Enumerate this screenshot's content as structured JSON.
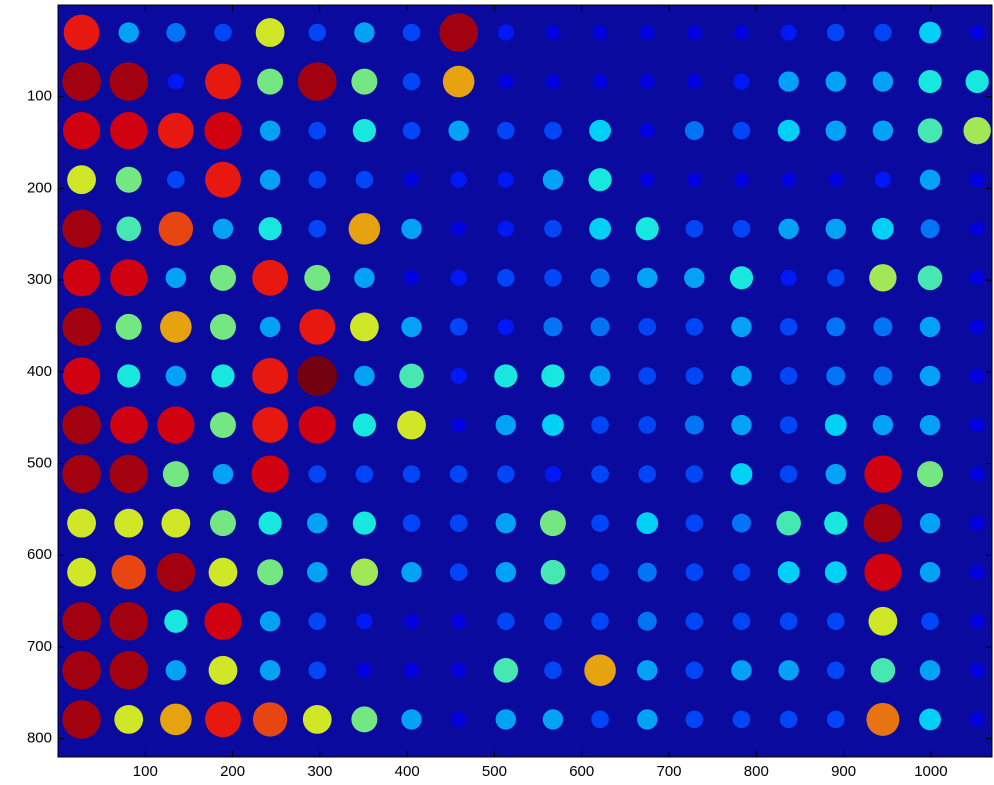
{
  "chart_data": {
    "type": "heatmap",
    "colormap": "jet",
    "background": "#0a0a9e",
    "x": [
      27,
      81,
      135,
      189,
      243,
      297,
      351,
      405,
      459,
      513,
      567,
      621,
      675,
      729,
      783,
      837,
      891,
      945,
      999,
      1053
    ],
    "y": [
      30,
      83.5,
      137,
      190.5,
      244,
      297.5,
      351,
      404.5,
      458,
      511.5,
      565,
      618.5,
      672,
      725.5,
      779
    ],
    "values": [
      [
        0.85,
        0.3,
        0.25,
        0.2,
        0.6,
        0.2,
        0.3,
        0.2,
        0.95,
        0.15,
        0.1,
        0.1,
        0.1,
        0.1,
        0.1,
        0.15,
        0.2,
        0.2,
        0.35,
        0.1
      ],
      [
        0.95,
        0.95,
        0.15,
        0.85,
        0.5,
        0.95,
        0.5,
        0.2,
        0.7,
        0.1,
        0.1,
        0.1,
        0.1,
        0.1,
        0.15,
        0.3,
        0.3,
        0.3,
        0.4,
        0.4
      ],
      [
        0.9,
        0.9,
        0.85,
        0.9,
        0.3,
        0.2,
        0.4,
        0.2,
        0.3,
        0.2,
        0.2,
        0.35,
        0.1,
        0.25,
        0.2,
        0.35,
        0.3,
        0.3,
        0.45,
        0.55
      ],
      [
        0.6,
        0.5,
        0.2,
        0.85,
        0.3,
        0.2,
        0.2,
        0.1,
        0.15,
        0.15,
        0.3,
        0.4,
        0.1,
        0.1,
        0.1,
        0.1,
        0.1,
        0.15,
        0.3,
        0.1
      ],
      [
        0.95,
        0.45,
        0.8,
        0.3,
        0.4,
        0.2,
        0.7,
        0.3,
        0.1,
        0.15,
        0.2,
        0.35,
        0.4,
        0.2,
        0.2,
        0.3,
        0.3,
        0.35,
        0.25,
        0.1
      ],
      [
        0.9,
        0.9,
        0.3,
        0.5,
        0.85,
        0.5,
        0.3,
        0.1,
        0.15,
        0.2,
        0.2,
        0.25,
        0.3,
        0.3,
        0.4,
        0.15,
        0.2,
        0.55,
        0.45,
        0.1
      ],
      [
        0.95,
        0.5,
        0.7,
        0.5,
        0.3,
        0.85,
        0.6,
        0.3,
        0.2,
        0.15,
        0.25,
        0.25,
        0.2,
        0.2,
        0.3,
        0.2,
        0.25,
        0.25,
        0.3,
        0.1
      ],
      [
        0.9,
        0.4,
        0.3,
        0.4,
        0.85,
        1,
        0.3,
        0.45,
        0.15,
        0.4,
        0.4,
        0.3,
        0.2,
        0.2,
        0.3,
        0.2,
        0.25,
        0.25,
        0.3,
        0.1
      ],
      [
        0.95,
        0.9,
        0.9,
        0.5,
        0.85,
        0.9,
        0.4,
        0.6,
        0.1,
        0.3,
        0.35,
        0.2,
        0.2,
        0.25,
        0.3,
        0.2,
        0.35,
        0.3,
        0.3,
        0.1
      ],
      [
        0.95,
        0.95,
        0.5,
        0.3,
        0.9,
        0.2,
        0.2,
        0.2,
        0.2,
        0.2,
        0.15,
        0.2,
        0.2,
        0.2,
        0.35,
        0.2,
        0.3,
        0.9,
        0.5,
        0.1
      ],
      [
        0.6,
        0.6,
        0.6,
        0.5,
        0.4,
        0.3,
        0.4,
        0.2,
        0.2,
        0.3,
        0.5,
        0.2,
        0.35,
        0.2,
        0.25,
        0.45,
        0.4,
        0.95,
        0.3,
        0.1
      ],
      [
        0.6,
        0.8,
        0.95,
        0.6,
        0.5,
        0.3,
        0.55,
        0.3,
        0.2,
        0.3,
        0.45,
        0.2,
        0.25,
        0.2,
        0.2,
        0.35,
        0.35,
        0.9,
        0.3,
        0.1
      ],
      [
        0.95,
        0.95,
        0.4,
        0.9,
        0.3,
        0.2,
        0.15,
        0.1,
        0.1,
        0.2,
        0.2,
        0.2,
        0.25,
        0.2,
        0.2,
        0.2,
        0.2,
        0.6,
        0.2,
        0.1
      ],
      [
        0.95,
        0.95,
        0.3,
        0.6,
        0.3,
        0.2,
        0.1,
        0.1,
        0.1,
        0.45,
        0.2,
        0.7,
        0.3,
        0.2,
        0.3,
        0.3,
        0.2,
        0.45,
        0.3,
        0.1
      ],
      [
        0.95,
        0.6,
        0.7,
        0.85,
        0.8,
        0.6,
        0.5,
        0.3,
        0.1,
        0.3,
        0.3,
        0.2,
        0.3,
        0.2,
        0.2,
        0.2,
        0.2,
        0.75,
        0.35,
        0.1
      ]
    ],
    "xlim": [
      0,
      1070
    ],
    "ylim": [
      0,
      820
    ],
    "y_reversed": true,
    "xticks": [
      100,
      200,
      300,
      400,
      500,
      600,
      700,
      800,
      900,
      1000
    ],
    "yticks": [
      100,
      200,
      300,
      400,
      500,
      600,
      700,
      800
    ]
  }
}
